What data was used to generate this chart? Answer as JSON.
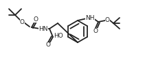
{
  "bg_color": "#ffffff",
  "line_color": "#222222",
  "line_width": 1.3,
  "text_color": "#222222",
  "font_size": 6.5,
  "fig_width": 2.11,
  "fig_height": 0.98,
  "dpi": 100,
  "xlim": [
    0,
    211
  ],
  "ylim": [
    0,
    98
  ]
}
